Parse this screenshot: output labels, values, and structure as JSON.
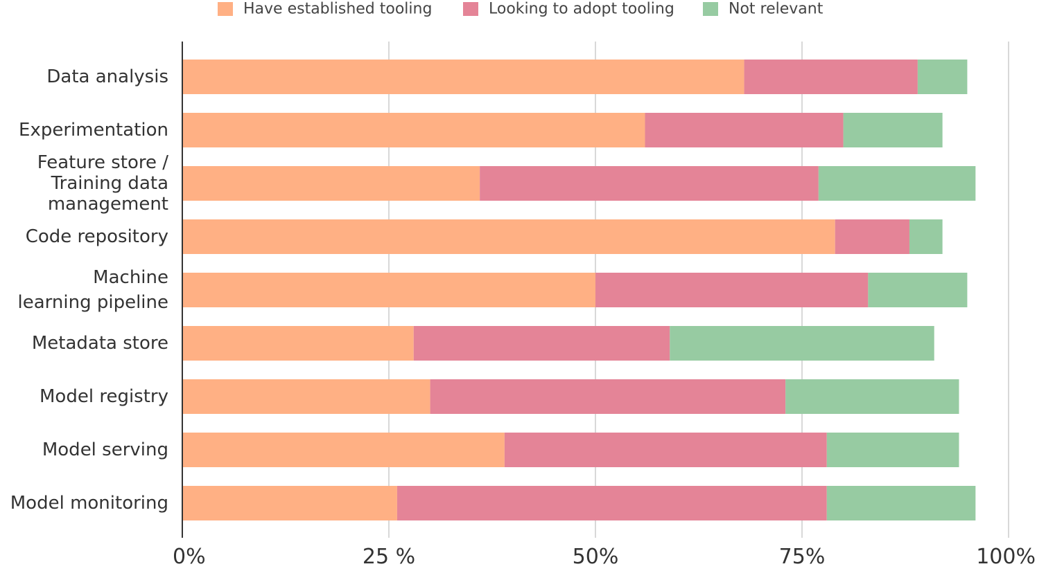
{
  "chart_data": {
    "type": "bar",
    "orientation": "horizontal",
    "stacked": true,
    "categories": [
      "Data analysis",
      "Experimentation",
      "Feature store / Training data management",
      "Code repository",
      "Machine learning pipeline",
      "Metadata store",
      "Model registry",
      "Model serving",
      "Model monitoring"
    ],
    "category_lines": [
      [
        "Data analysis"
      ],
      [
        "Experimentation"
      ],
      [
        "Feature store /",
        "Training data",
        "management"
      ],
      [
        "Code repository"
      ],
      [
        "Machine",
        "learning pipeline"
      ],
      [
        "Metadata store"
      ],
      [
        "Model registry"
      ],
      [
        "Model serving"
      ],
      [
        "Model monitoring"
      ]
    ],
    "series": [
      {
        "name": "Have established tooling",
        "color": "#ffb084",
        "values": [
          68,
          56,
          36,
          79,
          50,
          28,
          30,
          39,
          26
        ]
      },
      {
        "name": "Looking to adopt tooling",
        "color": "#e48497",
        "values": [
          21,
          24,
          41,
          9,
          33,
          31,
          43,
          39,
          52
        ]
      },
      {
        "name": "Not relevant",
        "color": "#97cba2",
        "values": [
          6,
          12,
          19,
          4,
          12,
          32,
          21,
          16,
          18
        ]
      }
    ],
    "xlim": [
      0,
      100
    ],
    "xticks": [
      0,
      25,
      50,
      75,
      100
    ],
    "xtick_labels": [
      "0%",
      "25 %",
      "50%",
      "75%",
      "100%"
    ],
    "grid": true,
    "legend_position": "top"
  }
}
